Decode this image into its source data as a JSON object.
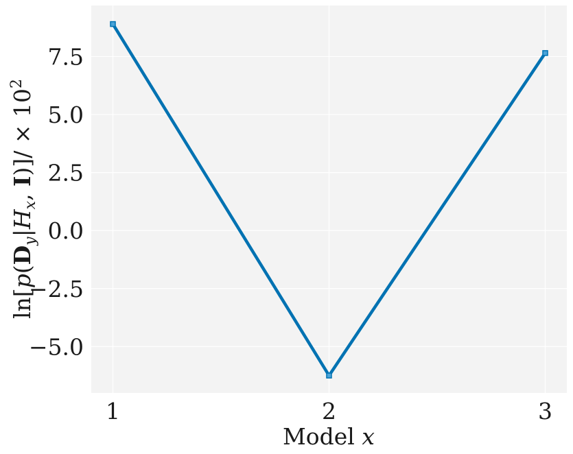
{
  "chart_data": {
    "type": "line",
    "title": "",
    "xlabel_text": "Model ",
    "xlabel_var": "x",
    "ylabel_parts": [
      "ln[",
      "p",
      "(",
      "D",
      "y",
      "|",
      "H",
      "x",
      ", ",
      "I",
      ")]/ × 10",
      "2"
    ],
    "x": [
      1,
      2,
      3
    ],
    "x_tick_labels": [
      "1",
      "2",
      "3"
    ],
    "xlim": [
      0.9,
      3.1
    ],
    "y": [
      8.9,
      -6.25,
      7.65
    ],
    "y_ticks": [
      -5.0,
      -2.5,
      0.0,
      2.5,
      5.0,
      7.5
    ],
    "y_tick_labels": [
      "−5.0",
      "−2.5",
      "0.0",
      "2.5",
      "5.0",
      "7.5"
    ],
    "ylim": [
      -7.0,
      9.7
    ],
    "grid": true,
    "line_color": "#0072b2",
    "plot_bg": "#f3f3f3",
    "grid_color": "#ffffff",
    "marker": "square"
  }
}
